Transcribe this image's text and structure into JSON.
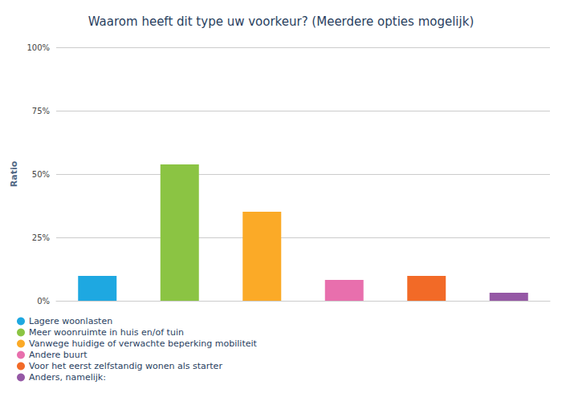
{
  "chart_data": {
    "type": "bar",
    "title": "Waarom heeft dit type uw voorkeur? (Meerdere opties mogelijk)",
    "y_label": "Ratio",
    "categories": [
      "Lagere woonlasten",
      "Meer woonruimte in huis en/of tuin",
      "Vanwege huidige of verwachte beperking mobiliteit",
      "Andere buurt",
      "Voor het eerst zelfstandig wonen als starter",
      "Anders, namelijk:"
    ],
    "values": [
      9.8,
      53.8,
      35.1,
      8.2,
      9.8,
      3.2
    ],
    "colors": [
      "#1ea8e1",
      "#8bc443",
      "#fbaa27",
      "#e86fad",
      "#f26a27",
      "#9558a5"
    ],
    "ylim": [
      0,
      100
    ],
    "yticks": [
      {
        "value": 0,
        "label": "0%"
      },
      {
        "value": 25,
        "label": "25%"
      },
      {
        "value": 50,
        "label": "50%"
      },
      {
        "value": 75,
        "label": "75%"
      },
      {
        "value": 100,
        "label": "100%"
      }
    ],
    "grid": true,
    "legend": "bottom-left",
    "tick_labels": "y"
  }
}
